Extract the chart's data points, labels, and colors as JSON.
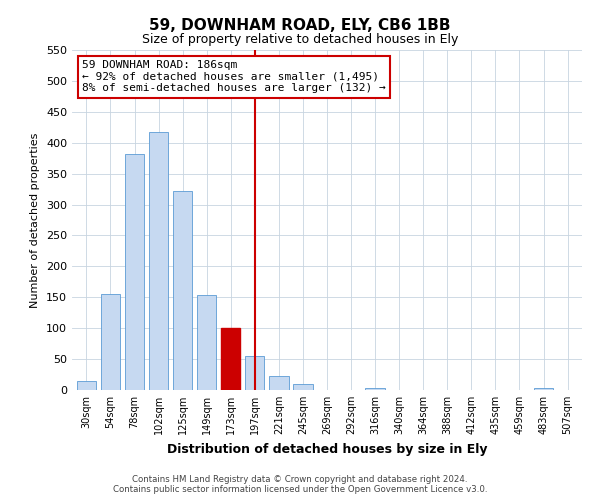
{
  "title": "59, DOWNHAM ROAD, ELY, CB6 1BB",
  "subtitle": "Size of property relative to detached houses in Ely",
  "xlabel": "Distribution of detached houses by size in Ely",
  "ylabel": "Number of detached properties",
  "bin_labels": [
    "30sqm",
    "54sqm",
    "78sqm",
    "102sqm",
    "125sqm",
    "149sqm",
    "173sqm",
    "197sqm",
    "221sqm",
    "245sqm",
    "269sqm",
    "292sqm",
    "316sqm",
    "340sqm",
    "364sqm",
    "388sqm",
    "412sqm",
    "435sqm",
    "459sqm",
    "483sqm",
    "507sqm"
  ],
  "bar_heights": [
    15,
    155,
    382,
    418,
    322,
    153,
    100,
    55,
    22,
    10,
    0,
    0,
    3,
    0,
    0,
    0,
    0,
    0,
    0,
    3,
    0
  ],
  "bar_color": "#c6d9f1",
  "bar_edge_color": "#5b9bd5",
  "highlight_bar_index": 6,
  "highlight_color": "#cc0000",
  "vline_index": 7,
  "annotation_text": "59 DOWNHAM ROAD: 186sqm\n← 92% of detached houses are smaller (1,495)\n8% of semi-detached houses are larger (132) →",
  "annotation_box_color": "#ffffff",
  "annotation_box_edge": "#cc0000",
  "ylim": [
    0,
    550
  ],
  "yticks": [
    0,
    50,
    100,
    150,
    200,
    250,
    300,
    350,
    400,
    450,
    500,
    550
  ],
  "footer_line1": "Contains HM Land Registry data © Crown copyright and database right 2024.",
  "footer_line2": "Contains public sector information licensed under the Open Government Licence v3.0.",
  "background_color": "#ffffff",
  "grid_color": "#c8d4e0"
}
